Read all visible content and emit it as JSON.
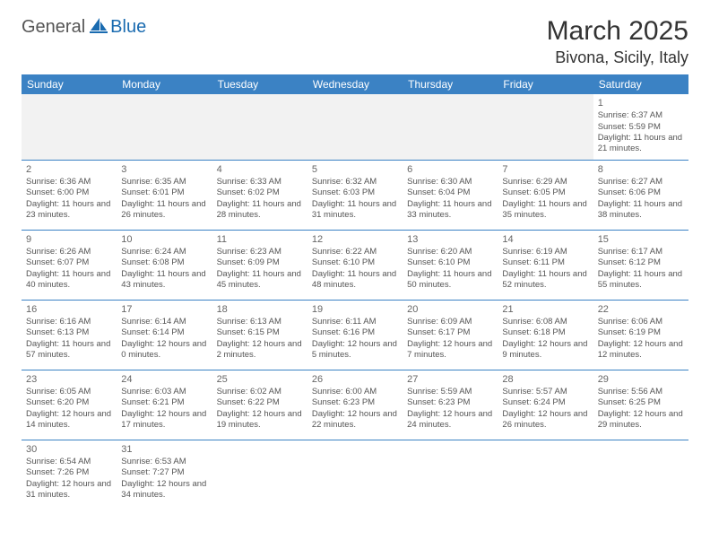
{
  "brand": {
    "part1": "General",
    "part2": "Blue"
  },
  "title": "March 2025",
  "location": "Bivona, Sicily, Italy",
  "colors": {
    "header_bg": "#3b82c4",
    "header_text": "#ffffff",
    "border": "#3b82c4",
    "blank_bg": "#f2f2f2",
    "text": "#555555",
    "brand_gray": "#555555",
    "brand_blue": "#1a6bb0"
  },
  "days_of_week": [
    "Sunday",
    "Monday",
    "Tuesday",
    "Wednesday",
    "Thursday",
    "Friday",
    "Saturday"
  ],
  "weeks": [
    [
      null,
      null,
      null,
      null,
      null,
      null,
      {
        "n": "1",
        "sunrise": "Sunrise: 6:37 AM",
        "sunset": "Sunset: 5:59 PM",
        "daylight": "Daylight: 11 hours and 21 minutes."
      }
    ],
    [
      {
        "n": "2",
        "sunrise": "Sunrise: 6:36 AM",
        "sunset": "Sunset: 6:00 PM",
        "daylight": "Daylight: 11 hours and 23 minutes."
      },
      {
        "n": "3",
        "sunrise": "Sunrise: 6:35 AM",
        "sunset": "Sunset: 6:01 PM",
        "daylight": "Daylight: 11 hours and 26 minutes."
      },
      {
        "n": "4",
        "sunrise": "Sunrise: 6:33 AM",
        "sunset": "Sunset: 6:02 PM",
        "daylight": "Daylight: 11 hours and 28 minutes."
      },
      {
        "n": "5",
        "sunrise": "Sunrise: 6:32 AM",
        "sunset": "Sunset: 6:03 PM",
        "daylight": "Daylight: 11 hours and 31 minutes."
      },
      {
        "n": "6",
        "sunrise": "Sunrise: 6:30 AM",
        "sunset": "Sunset: 6:04 PM",
        "daylight": "Daylight: 11 hours and 33 minutes."
      },
      {
        "n": "7",
        "sunrise": "Sunrise: 6:29 AM",
        "sunset": "Sunset: 6:05 PM",
        "daylight": "Daylight: 11 hours and 35 minutes."
      },
      {
        "n": "8",
        "sunrise": "Sunrise: 6:27 AM",
        "sunset": "Sunset: 6:06 PM",
        "daylight": "Daylight: 11 hours and 38 minutes."
      }
    ],
    [
      {
        "n": "9",
        "sunrise": "Sunrise: 6:26 AM",
        "sunset": "Sunset: 6:07 PM",
        "daylight": "Daylight: 11 hours and 40 minutes."
      },
      {
        "n": "10",
        "sunrise": "Sunrise: 6:24 AM",
        "sunset": "Sunset: 6:08 PM",
        "daylight": "Daylight: 11 hours and 43 minutes."
      },
      {
        "n": "11",
        "sunrise": "Sunrise: 6:23 AM",
        "sunset": "Sunset: 6:09 PM",
        "daylight": "Daylight: 11 hours and 45 minutes."
      },
      {
        "n": "12",
        "sunrise": "Sunrise: 6:22 AM",
        "sunset": "Sunset: 6:10 PM",
        "daylight": "Daylight: 11 hours and 48 minutes."
      },
      {
        "n": "13",
        "sunrise": "Sunrise: 6:20 AM",
        "sunset": "Sunset: 6:10 PM",
        "daylight": "Daylight: 11 hours and 50 minutes."
      },
      {
        "n": "14",
        "sunrise": "Sunrise: 6:19 AM",
        "sunset": "Sunset: 6:11 PM",
        "daylight": "Daylight: 11 hours and 52 minutes."
      },
      {
        "n": "15",
        "sunrise": "Sunrise: 6:17 AM",
        "sunset": "Sunset: 6:12 PM",
        "daylight": "Daylight: 11 hours and 55 minutes."
      }
    ],
    [
      {
        "n": "16",
        "sunrise": "Sunrise: 6:16 AM",
        "sunset": "Sunset: 6:13 PM",
        "daylight": "Daylight: 11 hours and 57 minutes."
      },
      {
        "n": "17",
        "sunrise": "Sunrise: 6:14 AM",
        "sunset": "Sunset: 6:14 PM",
        "daylight": "Daylight: 12 hours and 0 minutes."
      },
      {
        "n": "18",
        "sunrise": "Sunrise: 6:13 AM",
        "sunset": "Sunset: 6:15 PM",
        "daylight": "Daylight: 12 hours and 2 minutes."
      },
      {
        "n": "19",
        "sunrise": "Sunrise: 6:11 AM",
        "sunset": "Sunset: 6:16 PM",
        "daylight": "Daylight: 12 hours and 5 minutes."
      },
      {
        "n": "20",
        "sunrise": "Sunrise: 6:09 AM",
        "sunset": "Sunset: 6:17 PM",
        "daylight": "Daylight: 12 hours and 7 minutes."
      },
      {
        "n": "21",
        "sunrise": "Sunrise: 6:08 AM",
        "sunset": "Sunset: 6:18 PM",
        "daylight": "Daylight: 12 hours and 9 minutes."
      },
      {
        "n": "22",
        "sunrise": "Sunrise: 6:06 AM",
        "sunset": "Sunset: 6:19 PM",
        "daylight": "Daylight: 12 hours and 12 minutes."
      }
    ],
    [
      {
        "n": "23",
        "sunrise": "Sunrise: 6:05 AM",
        "sunset": "Sunset: 6:20 PM",
        "daylight": "Daylight: 12 hours and 14 minutes."
      },
      {
        "n": "24",
        "sunrise": "Sunrise: 6:03 AM",
        "sunset": "Sunset: 6:21 PM",
        "daylight": "Daylight: 12 hours and 17 minutes."
      },
      {
        "n": "25",
        "sunrise": "Sunrise: 6:02 AM",
        "sunset": "Sunset: 6:22 PM",
        "daylight": "Daylight: 12 hours and 19 minutes."
      },
      {
        "n": "26",
        "sunrise": "Sunrise: 6:00 AM",
        "sunset": "Sunset: 6:23 PM",
        "daylight": "Daylight: 12 hours and 22 minutes."
      },
      {
        "n": "27",
        "sunrise": "Sunrise: 5:59 AM",
        "sunset": "Sunset: 6:23 PM",
        "daylight": "Daylight: 12 hours and 24 minutes."
      },
      {
        "n": "28",
        "sunrise": "Sunrise: 5:57 AM",
        "sunset": "Sunset: 6:24 PM",
        "daylight": "Daylight: 12 hours and 26 minutes."
      },
      {
        "n": "29",
        "sunrise": "Sunrise: 5:56 AM",
        "sunset": "Sunset: 6:25 PM",
        "daylight": "Daylight: 12 hours and 29 minutes."
      }
    ],
    [
      {
        "n": "30",
        "sunrise": "Sunrise: 6:54 AM",
        "sunset": "Sunset: 7:26 PM",
        "daylight": "Daylight: 12 hours and 31 minutes."
      },
      {
        "n": "31",
        "sunrise": "Sunrise: 6:53 AM",
        "sunset": "Sunset: 7:27 PM",
        "daylight": "Daylight: 12 hours and 34 minutes."
      },
      null,
      null,
      null,
      null,
      null
    ]
  ]
}
